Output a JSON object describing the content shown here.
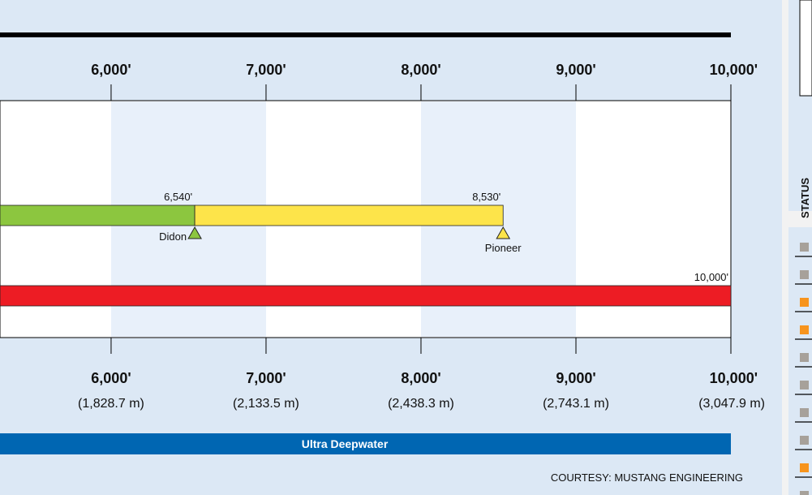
{
  "chart_data": {
    "type": "bar",
    "x_axis_top_labels": [
      "6,000'",
      "7,000'",
      "8,000'",
      "9,000'",
      "10,000'"
    ],
    "x_axis_bottom_labels": [
      "6,000'",
      "7,000'",
      "8,000'",
      "9,000'",
      "10,000'"
    ],
    "x_axis_metric_labels": [
      "(1,828.7 m)",
      "(2,133.5 m)",
      "(2,438.3 m)",
      "(2,743.1 m)",
      "(3,047.9 m)"
    ],
    "x_ticks": [
      6000,
      7000,
      8000,
      9000,
      10000
    ],
    "xlim": [
      5283,
      10000
    ],
    "shaded_bands": [
      [
        6000,
        7000
      ],
      [
        8000,
        9000
      ]
    ],
    "series": [
      {
        "segments": [
          {
            "start": 5283,
            "end": 6540,
            "color": "#8cc63f"
          },
          {
            "start": 6540,
            "end": 8530,
            "color": "#fde44a"
          }
        ],
        "labels": [
          {
            "x": 6540,
            "text": "6,540'"
          },
          {
            "x": 8530,
            "text": "8,530'"
          }
        ],
        "markers": [
          {
            "x": 6540,
            "name": "Didon",
            "color": "#8cc63f"
          },
          {
            "x": 8530,
            "name": "Pioneer",
            "color": "#fde44a"
          }
        ]
      },
      {
        "segments": [
          {
            "start": 5283,
            "end": 10000,
            "color": "#ed1c24"
          }
        ],
        "labels": [
          {
            "x": 10000,
            "text": "10,000'"
          }
        ],
        "markers": []
      }
    ],
    "range_band": {
      "label": "Ultra Deepwater",
      "start": 5283,
      "end": 10000,
      "color": "#0066b2"
    },
    "courtesy": "COURTESY: MUSTANG ENGINEERING",
    "side_label": "STATUS",
    "side_markers": [
      "#a7a19a",
      "#a7a19a",
      "#f7941d",
      "#f7941d",
      "#a7a19a",
      "#a7a19a",
      "#a7a19a",
      "#a7a19a",
      "#f7941d",
      "#a7a19a"
    ]
  }
}
